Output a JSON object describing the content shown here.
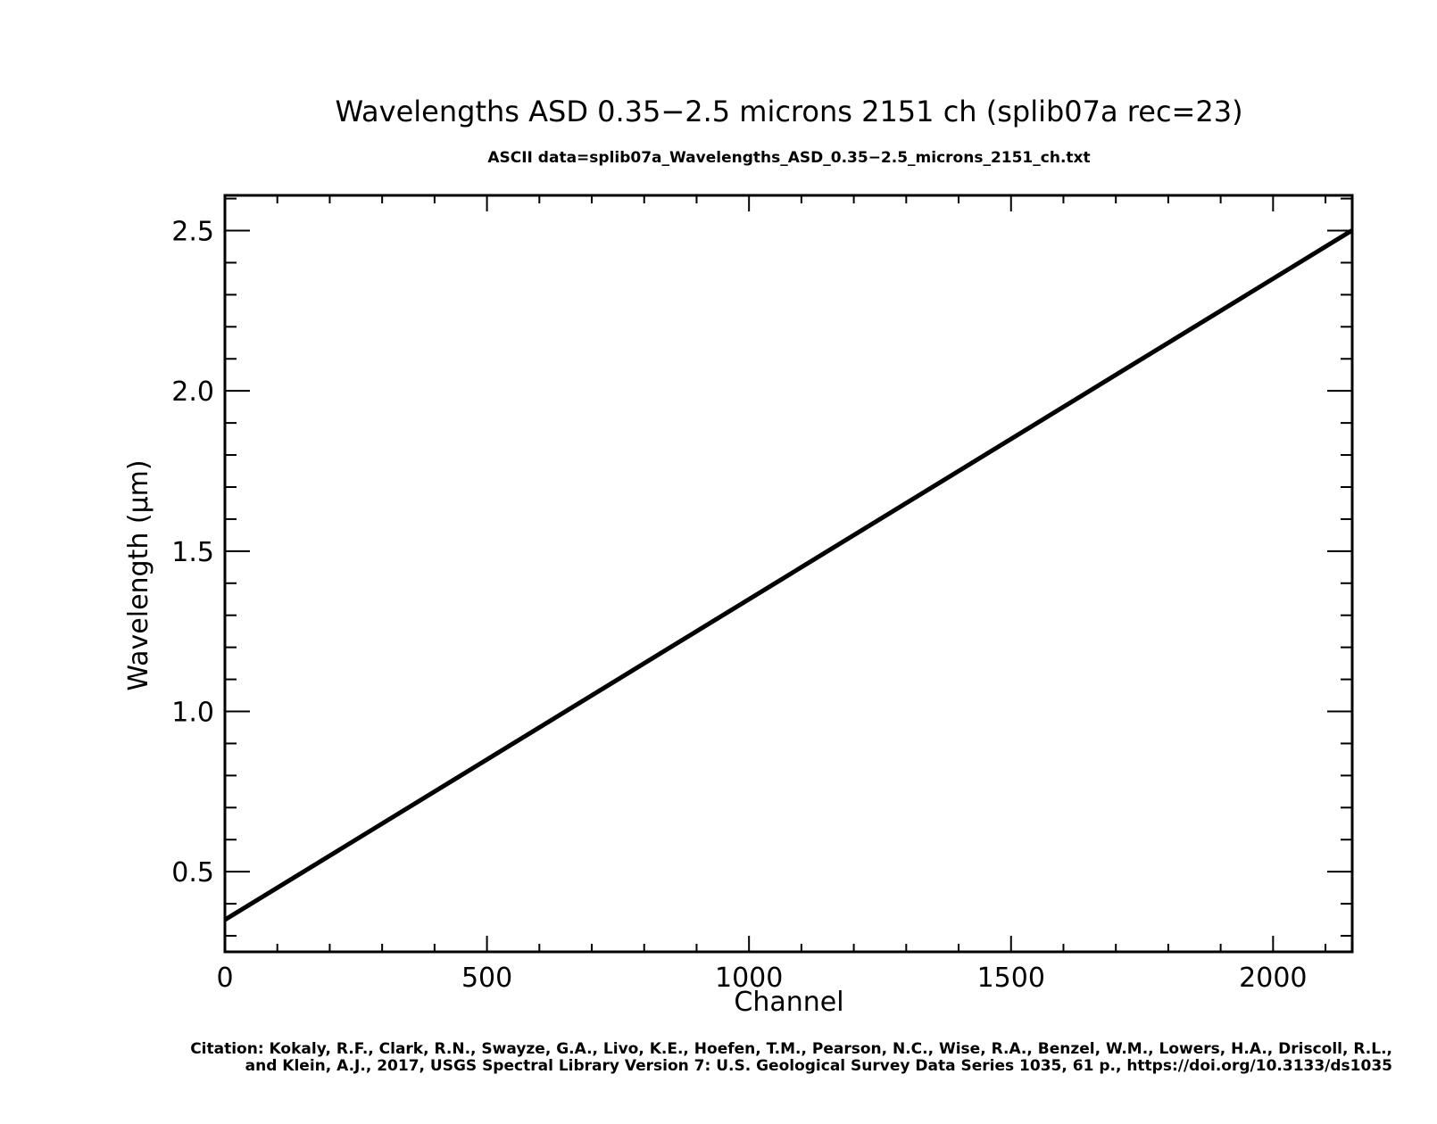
{
  "chart_data": {
    "type": "line",
    "title": "Wavelengths ASD 0.35−2.5 microns 2151 ch  (splib07a rec=23)",
    "subtitle": "ASCII data=splib07a_Wavelengths_ASD_0.35−2.5_microns_2151_ch.txt",
    "xlabel": "Channel",
    "ylabel": "Wavelength (μm)",
    "xlim": [
      0,
      2151
    ],
    "ylim": [
      0.25,
      2.61
    ],
    "x_ticks_major": [
      0,
      500,
      1000,
      1500,
      2000
    ],
    "x_tick_labels": [
      "0",
      "500",
      "1000",
      "1500",
      "2000"
    ],
    "x_minor_step": 100,
    "y_ticks_major": [
      0.5,
      1.0,
      1.5,
      2.0,
      2.5
    ],
    "y_tick_labels": [
      "0.5",
      "1.0",
      "1.5",
      "2.0",
      "2.5"
    ],
    "y_minor_step": 0.1,
    "grid": false,
    "series": [
      {
        "x": [
          0,
          2150
        ],
        "y": [
          0.35,
          2.5
        ]
      }
    ],
    "line_color": "#000000",
    "citation": [
      "Citation: Kokaly, R.F., Clark, R.N., Swayze, G.A., Livo, K.E., Hoefen, T.M., Pearson, N.C., Wise, R.A., Benzel, W.M., Lowers, H.A., Driscoll, R.L.,",
      "and Klein, A.J., 2017, USGS Spectral Library Version 7: U.S. Geological Survey Data Series 1035, 61 p., https://doi.org/10.3133/ds1035"
    ]
  }
}
